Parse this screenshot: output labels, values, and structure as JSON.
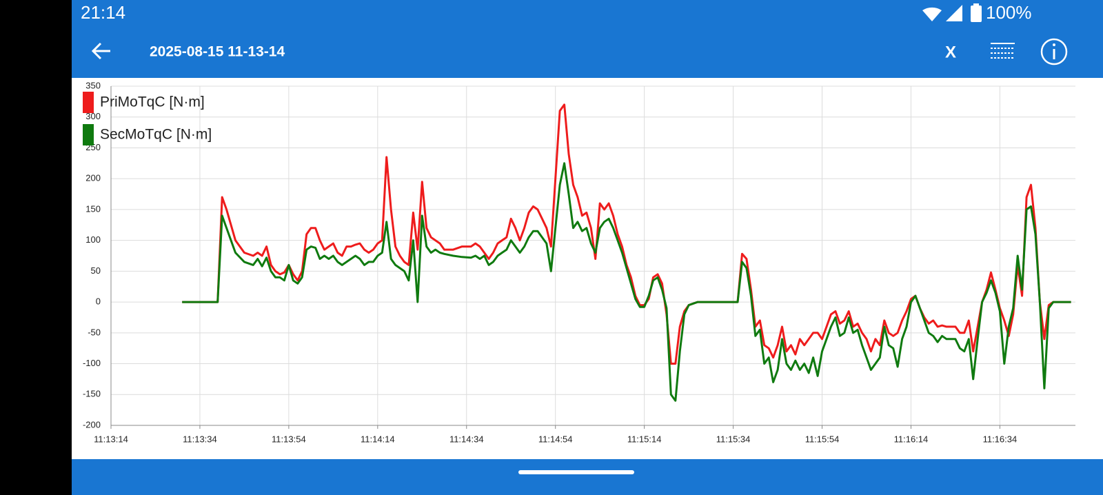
{
  "status_bar": {
    "time": "21:14",
    "battery": "100%"
  },
  "app_bar": {
    "title": "2025-08-15 11-13-14",
    "action": "X"
  },
  "chart_data": {
    "type": "line",
    "x": [
      "11:13:30",
      "11:13:38",
      "11:13:39",
      "11:13:40",
      "11:13:42",
      "11:13:44",
      "11:13:46",
      "11:13:47",
      "11:13:48",
      "11:13:49",
      "11:13:50",
      "11:13:51",
      "11:13:52",
      "11:13:53",
      "11:13:54",
      "11:13:55",
      "11:13:56",
      "11:13:57",
      "11:13:58",
      "11:13:59",
      "11:14:00",
      "11:14:01",
      "11:14:02",
      "11:14:03",
      "11:14:04",
      "11:14:05",
      "11:14:06",
      "11:14:07",
      "11:14:08",
      "11:14:09",
      "11:14:10",
      "11:14:11",
      "11:14:12",
      "11:14:13",
      "11:14:14",
      "11:14:15",
      "11:14:16",
      "11:14:17",
      "11:14:18",
      "11:14:19",
      "11:14:20",
      "11:14:21",
      "11:14:22",
      "11:14:23",
      "11:14:24",
      "11:14:25",
      "11:14:26",
      "11:14:27",
      "11:14:28",
      "11:14:29",
      "11:14:31",
      "11:14:33",
      "11:14:35",
      "11:14:36",
      "11:14:37",
      "11:14:38",
      "11:14:39",
      "11:14:40",
      "11:14:41",
      "11:14:42",
      "11:14:43",
      "11:14:44",
      "11:14:45",
      "11:14:46",
      "11:14:47",
      "11:14:48",
      "11:14:49",
      "11:14:50",
      "11:14:51",
      "11:14:52",
      "11:14:53",
      "11:14:54",
      "11:14:55",
      "11:14:56",
      "11:14:57",
      "11:14:58",
      "11:14:59",
      "11:15:00",
      "11:15:01",
      "11:15:02",
      "11:15:03",
      "11:15:04",
      "11:15:05",
      "11:15:06",
      "11:15:07",
      "11:15:08",
      "11:15:09",
      "11:15:10",
      "11:15:11",
      "11:15:12",
      "11:15:13",
      "11:15:14",
      "11:15:15",
      "11:15:16",
      "11:15:17",
      "11:15:18",
      "11:15:19",
      "11:15:20",
      "11:15:21",
      "11:15:22",
      "11:15:23",
      "11:15:24",
      "11:15:26",
      "11:15:35",
      "11:15:36",
      "11:15:37",
      "11:15:38",
      "11:15:39",
      "11:15:40",
      "11:15:41",
      "11:15:42",
      "11:15:43",
      "11:15:44",
      "11:15:45",
      "11:15:46",
      "11:15:47",
      "11:15:48",
      "11:15:49",
      "11:15:50",
      "11:15:51",
      "11:15:52",
      "11:15:53",
      "11:15:54",
      "11:15:55",
      "11:15:56",
      "11:15:57",
      "11:15:58",
      "11:15:59",
      "11:16:00",
      "11:16:01",
      "11:16:02",
      "11:16:03",
      "11:16:04",
      "11:16:05",
      "11:16:06",
      "11:16:07",
      "11:16:08",
      "11:16:09",
      "11:16:10",
      "11:16:11",
      "11:16:12",
      "11:16:13",
      "11:16:14",
      "11:16:15",
      "11:16:16",
      "11:16:17",
      "11:16:18",
      "11:16:19",
      "11:16:20",
      "11:16:21",
      "11:16:22",
      "11:16:24",
      "11:16:25",
      "11:16:26",
      "11:16:27",
      "11:16:28",
      "11:16:29",
      "11:16:30",
      "11:16:31",
      "11:16:32",
      "11:16:33",
      "11:16:34",
      "11:16:35",
      "11:16:36",
      "11:16:37",
      "11:16:38",
      "11:16:39",
      "11:16:40",
      "11:16:41",
      "11:16:42",
      "11:16:43",
      "11:16:44",
      "11:16:45",
      "11:16:46",
      "11:16:50"
    ],
    "series": [
      {
        "name": "PriMoTqC [N·m]",
        "color": "#ee1c1c",
        "values": [
          0,
          0,
          170,
          150,
          100,
          80,
          75,
          80,
          75,
          90,
          60,
          50,
          45,
          48,
          60,
          45,
          35,
          50,
          110,
          120,
          120,
          100,
          85,
          90,
          95,
          80,
          75,
          90,
          90,
          93,
          95,
          85,
          80,
          85,
          95,
          100,
          235,
          150,
          90,
          75,
          65,
          60,
          145,
          85,
          195,
          120,
          105,
          100,
          95,
          85,
          85,
          90,
          90,
          95,
          90,
          80,
          70,
          80,
          95,
          100,
          105,
          135,
          120,
          100,
          120,
          145,
          155,
          150,
          135,
          120,
          90,
          200,
          310,
          320,
          240,
          190,
          170,
          140,
          145,
          120,
          70,
          160,
          150,
          160,
          140,
          110,
          90,
          60,
          40,
          10,
          -5,
          -5,
          5,
          40,
          45,
          30,
          -20,
          -100,
          -100,
          -40,
          -15,
          -5,
          0,
          0,
          78,
          70,
          20,
          -40,
          -30,
          -70,
          -75,
          -90,
          -70,
          -40,
          -80,
          -70,
          -85,
          -60,
          -70,
          -60,
          -50,
          -50,
          -60,
          -40,
          -20,
          -15,
          -35,
          -30,
          -15,
          -40,
          -35,
          -50,
          -60,
          -80,
          -60,
          -70,
          -30,
          -50,
          -55,
          -50,
          -30,
          -15,
          5,
          10,
          -10,
          -25,
          -35,
          -30,
          -40,
          -38,
          -40,
          -40,
          -50,
          -50,
          -30,
          -80,
          -40,
          0,
          20,
          48,
          20,
          -10,
          -30,
          -55,
          -20,
          60,
          10,
          170,
          190,
          120,
          0,
          -60,
          -5,
          0,
          0
        ]
      },
      {
        "name": "SecMoTqC [N·m]",
        "color": "#0f7a0f",
        "values": [
          0,
          0,
          140,
          120,
          80,
          65,
          60,
          70,
          58,
          72,
          50,
          40,
          40,
          35,
          60,
          35,
          30,
          40,
          85,
          90,
          88,
          70,
          75,
          70,
          75,
          65,
          60,
          65,
          70,
          75,
          70,
          60,
          65,
          65,
          75,
          80,
          130,
          70,
          60,
          55,
          50,
          35,
          100,
          0,
          140,
          90,
          80,
          85,
          80,
          78,
          75,
          73,
          72,
          75,
          70,
          75,
          60,
          65,
          75,
          80,
          85,
          100,
          90,
          80,
          90,
          105,
          115,
          115,
          105,
          95,
          50,
          120,
          190,
          225,
          175,
          120,
          130,
          115,
          120,
          95,
          80,
          120,
          130,
          135,
          120,
          100,
          80,
          55,
          30,
          5,
          -8,
          -8,
          10,
          35,
          40,
          20,
          -10,
          -150,
          -160,
          -80,
          -20,
          -5,
          0,
          0,
          65,
          55,
          10,
          -55,
          -45,
          -100,
          -90,
          -130,
          -110,
          -60,
          -100,
          -110,
          -95,
          -110,
          -100,
          -115,
          -90,
          -120,
          -80,
          -60,
          -40,
          -25,
          -55,
          -50,
          -25,
          -50,
          -45,
          -70,
          -90,
          -110,
          -100,
          -90,
          -40,
          -70,
          -75,
          -105,
          -60,
          -40,
          0,
          10,
          -10,
          -30,
          -50,
          -55,
          -65,
          -55,
          -60,
          -60,
          -75,
          -80,
          -60,
          -125,
          -60,
          0,
          15,
          35,
          15,
          -15,
          -100,
          -40,
          -10,
          75,
          20,
          150,
          155,
          110,
          0,
          -140,
          -10,
          0,
          0
        ]
      }
    ],
    "xlim": [
      "11:13:14",
      "11:16:51"
    ],
    "xticks": [
      "11:13:14",
      "11:13:34",
      "11:13:54",
      "11:14:14",
      "11:14:34",
      "11:14:54",
      "11:15:14",
      "11:15:34",
      "11:15:54",
      "11:16:14",
      "11:16:34"
    ],
    "ylim": [
      -200,
      350
    ],
    "yticks": [
      -200,
      -150,
      -100,
      -50,
      0,
      50,
      100,
      150,
      200,
      250,
      300,
      350
    ],
    "grid": true,
    "legend": "top-left"
  }
}
